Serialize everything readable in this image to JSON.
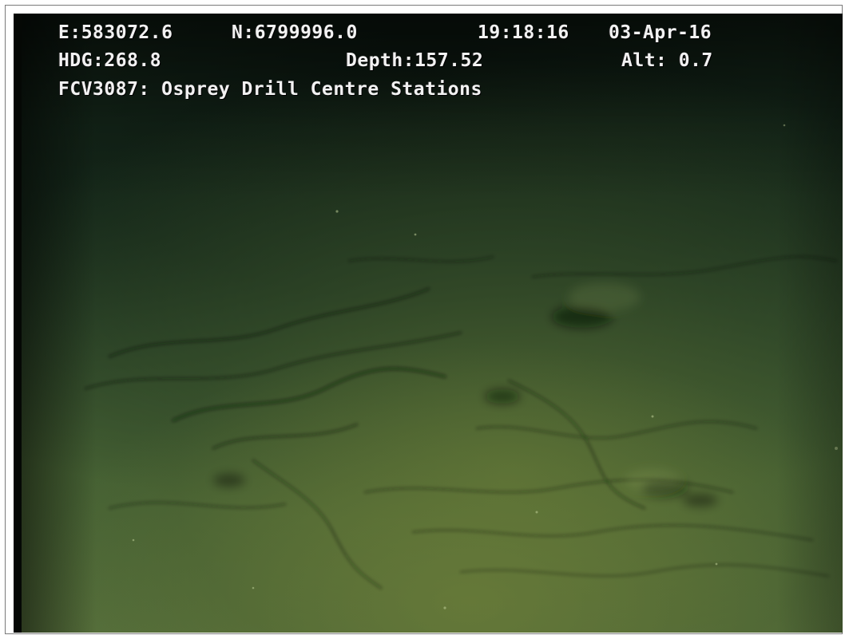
{
  "overlay": {
    "easting": "E:583072.6",
    "northing": "N:6799996.0",
    "time": "19:18:16",
    "date": "03-Apr-16",
    "heading": "HDG:268.8",
    "depth": "Depth:157.52",
    "altitude": "Alt: 0.7",
    "survey_label": "FCV3087: Osprey Drill Centre Stations"
  },
  "scene": {
    "subject": "seabed-sediment",
    "colors": {
      "dark_water": "#0e1d13",
      "seabed": "#4d6a38",
      "osd_text": "#f2f2f2"
    }
  }
}
